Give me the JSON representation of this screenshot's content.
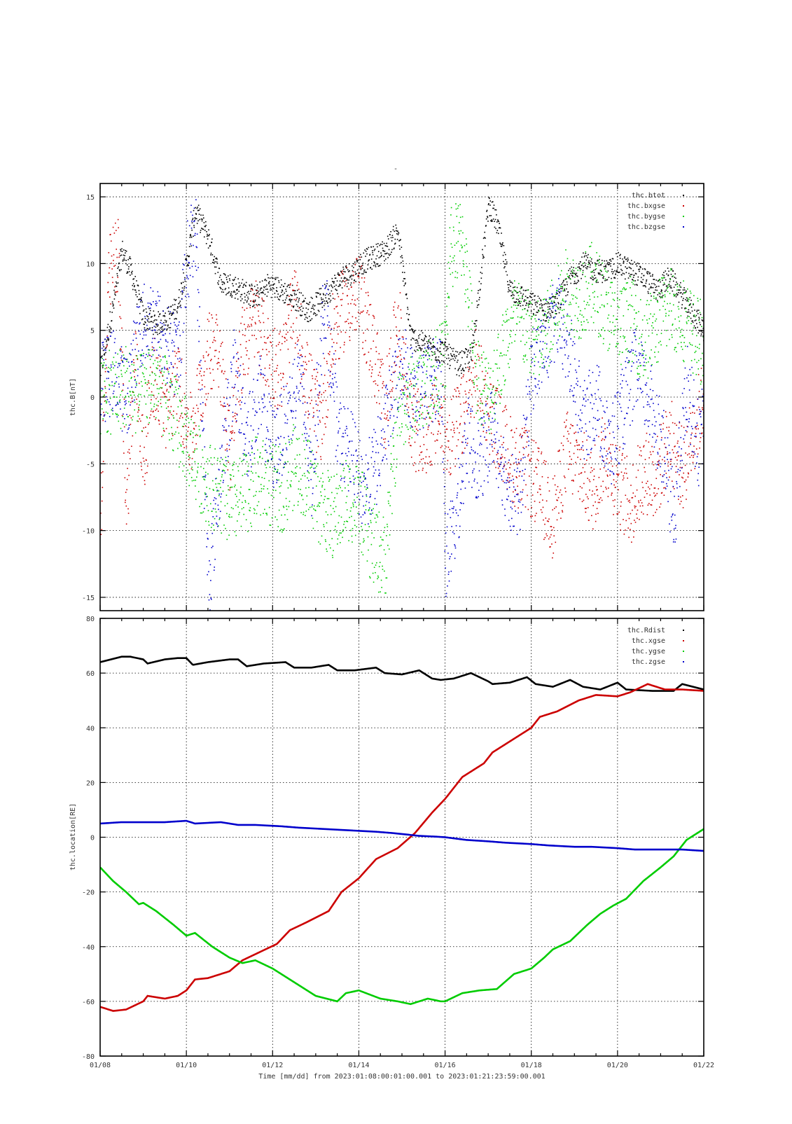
{
  "figure_title": "-",
  "x_axis": {
    "label": "Time [mm/dd]  from 2023:01:08:00:01:00.001  to  2023:01:21:23:59:00.001",
    "ticks": [
      "01/08",
      "01/10",
      "01/12",
      "01/14",
      "01/16",
      "01/18",
      "01/20",
      "01/22"
    ]
  },
  "colors": {
    "black": "#000000",
    "red": "#cc0000",
    "green": "#00cc00",
    "blue": "#0000cc"
  },
  "chart_data": [
    {
      "type": "scatter",
      "ylabel": "thc.B[nT]",
      "x_unit": "days since 2023-01-08 00:00",
      "xlim": [
        0,
        14
      ],
      "ylim": [
        -16,
        16
      ],
      "yticks": [
        -15,
        -10,
        -5,
        0,
        5,
        10,
        15
      ],
      "grid": true,
      "legend_position": "top-right",
      "series": [
        {
          "name": "thc.btot",
          "color": "#000000",
          "x": [
            0,
            0.3,
            0.5,
            0.7,
            1.0,
            1.3,
            1.6,
            1.8,
            2.0,
            2.2,
            2.5,
            2.8,
            3.0,
            3.3,
            3.6,
            3.9,
            4.2,
            4.5,
            4.8,
            5.0,
            5.3,
            5.6,
            5.9,
            6.0,
            6.3,
            6.6,
            6.9,
            7.2,
            7.5,
            7.8,
            8.0,
            8.1,
            8.3,
            8.6,
            9.0,
            9.2,
            9.5,
            9.8,
            10.0,
            10.3,
            10.6,
            10.9,
            11.2,
            11.5,
            11.8,
            12.0,
            12.3,
            12.6,
            12.9,
            13.2,
            13.5,
            13.8,
            14.0
          ],
          "y": [
            2.0,
            7.0,
            11.0,
            9.5,
            6.0,
            5.5,
            6.0,
            7.0,
            10.0,
            14.0,
            12.0,
            8.5,
            8.5,
            8.0,
            7.5,
            8.5,
            8.0,
            7.5,
            6.5,
            7.0,
            8.0,
            9.0,
            9.5,
            10.0,
            10.5,
            11.0,
            12.5,
            4.5,
            4.0,
            3.5,
            3.5,
            3.0,
            2.5,
            3.0,
            14.5,
            13.0,
            8.0,
            7.5,
            7.0,
            6.5,
            7.0,
            9.0,
            10.0,
            9.5,
            9.5,
            10.0,
            9.5,
            9.0,
            8.0,
            9.0,
            7.5,
            6.0,
            5.0
          ]
        },
        {
          "name": "thc.bxgse",
          "color": "#cc0000",
          "x": [
            0,
            0.2,
            0.4,
            0.6,
            0.8,
            1.0,
            1.2,
            1.5,
            1.8,
            2.1,
            2.4,
            2.7,
            3.0,
            3.3,
            3.6,
            3.9,
            4.2,
            4.5,
            4.8,
            5.1,
            5.4,
            5.7,
            6.0,
            6.3,
            6.6,
            6.9,
            7.2,
            7.5,
            7.8,
            8.0,
            8.1,
            8.4,
            8.7,
            9.0,
            9.3,
            9.6,
            9.9,
            10.2,
            10.5,
            10.8,
            11.1,
            11.4,
            11.7,
            12.0,
            12.3,
            12.6,
            12.9,
            13.2,
            13.5,
            13.8,
            14.0
          ],
          "y": [
            -9.0,
            9.0,
            11.0,
            -8.0,
            3.0,
            -5.0,
            2.0,
            -1.0,
            1.0,
            -3.0,
            2.0,
            5.0,
            -4.0,
            4.0,
            6.0,
            3.0,
            2.0,
            7.0,
            1.0,
            -2.0,
            5.0,
            7.0,
            7.5,
            4.0,
            -1.0,
            6.0,
            -2.0,
            -3.0,
            -1.5,
            -2.5,
            -3.0,
            -1.5,
            2.0,
            -1.0,
            -3.0,
            -5.0,
            -5.5,
            -7.0,
            -9.0,
            -4.0,
            -5.0,
            -7.0,
            -4.0,
            -6.5,
            -8.0,
            -5.5,
            -6.0,
            -3.0,
            -5.5,
            -2.0,
            0.0
          ]
        },
        {
          "name": "thc.bygse",
          "color": "#00cc00",
          "x": [
            0,
            0.3,
            0.6,
            0.9,
            1.2,
            1.5,
            1.8,
            2.1,
            2.4,
            2.7,
            3.0,
            3.3,
            3.6,
            3.9,
            4.2,
            4.5,
            4.8,
            5.1,
            5.4,
            5.7,
            6.0,
            6.3,
            6.6,
            6.9,
            7.2,
            7.5,
            7.8,
            8.0,
            8.1,
            8.4,
            8.7,
            9.0,
            9.3,
            9.6,
            9.9,
            10.2,
            10.5,
            10.8,
            11.1,
            11.4,
            11.7,
            12.0,
            12.3,
            12.6,
            12.9,
            13.2,
            13.5,
            13.8,
            14.0
          ],
          "y": [
            0.0,
            0.5,
            1.0,
            0.0,
            1.5,
            0.0,
            -2.0,
            -4.0,
            -6.0,
            -7.0,
            -8.0,
            -7.5,
            -6.0,
            -6.5,
            -7.0,
            -5.0,
            -6.0,
            -8.0,
            -9.0,
            -7.5,
            -8.0,
            -11.0,
            -12.0,
            -1.0,
            0.0,
            1.0,
            2.0,
            3.0,
            11.0,
            12.0,
            2.0,
            0.0,
            3.0,
            6.0,
            5.0,
            4.0,
            6.0,
            8.0,
            7.5,
            8.5,
            7.0,
            5.0,
            6.0,
            4.0,
            5.5,
            7.0,
            6.0,
            4.5,
            4.0
          ]
        },
        {
          "name": "thc.bzgse",
          "color": "#0000cc",
          "x": [
            0,
            0.3,
            0.6,
            0.9,
            1.2,
            1.5,
            1.8,
            2.0,
            2.2,
            2.5,
            2.8,
            3.1,
            3.4,
            3.7,
            4.0,
            4.3,
            4.6,
            4.9,
            5.2,
            5.5,
            5.8,
            6.1,
            6.4,
            6.7,
            7.0,
            7.3,
            7.6,
            7.9,
            8.0,
            8.2,
            8.5,
            8.8,
            9.1,
            9.4,
            9.7,
            10.0,
            10.3,
            10.6,
            10.9,
            11.2,
            11.5,
            11.8,
            12.1,
            12.4,
            12.7,
            13.0,
            13.3,
            13.6,
            13.9,
            14.0
          ],
          "y": [
            1.0,
            2.0,
            0.0,
            5.0,
            6.0,
            4.0,
            3.0,
            10.0,
            13.0,
            -14.0,
            -5.0,
            2.0,
            -3.0,
            0.0,
            -4.0,
            -2.0,
            2.0,
            -6.0,
            8.0,
            -3.0,
            -4.0,
            -7.0,
            -5.0,
            -1.0,
            3.0,
            0.0,
            1.0,
            2.0,
            -12.0,
            -10.0,
            -3.0,
            -5.0,
            -2.0,
            -6.0,
            -8.0,
            2.0,
            4.0,
            6.0,
            3.0,
            -2.0,
            0.0,
            -4.0,
            -1.0,
            2.0,
            0.0,
            -3.0,
            -9.0,
            1.0,
            -4.0,
            0.0
          ]
        }
      ]
    },
    {
      "type": "line",
      "ylabel": "thc.location[RE]",
      "x_unit": "days since 2023-01-08 00:00",
      "xlim": [
        0,
        14
      ],
      "ylim": [
        -80,
        80
      ],
      "yticks": [
        -80,
        -60,
        -40,
        -20,
        0,
        20,
        40,
        60,
        80
      ],
      "grid": true,
      "legend_position": "top-right",
      "series": [
        {
          "name": "thc.Rdist",
          "color": "#000000",
          "x": [
            0,
            0.5,
            0.7,
            1.0,
            1.1,
            1.5,
            1.8,
            2.0,
            2.15,
            2.5,
            3.0,
            3.2,
            3.4,
            3.8,
            4.3,
            4.5,
            4.9,
            5.3,
            5.5,
            5.9,
            6.4,
            6.6,
            7.0,
            7.4,
            7.7,
            7.9,
            8.2,
            8.6,
            9.0,
            9.1,
            9.5,
            9.9,
            10.1,
            10.5,
            10.9,
            11.2,
            11.6,
            12.0,
            12.2,
            12.8,
            13.3,
            13.5,
            14.0
          ],
          "y": [
            64,
            66,
            66,
            65,
            63.5,
            65,
            65.5,
            65.5,
            63,
            64,
            65,
            65,
            62.5,
            63.5,
            64,
            62,
            62,
            63,
            61,
            61,
            62,
            60,
            59.5,
            61,
            58,
            57.5,
            58,
            60,
            57,
            56,
            56.5,
            58.5,
            56,
            55,
            57.5,
            55,
            54,
            56.5,
            54,
            53.5,
            53.5,
            56,
            54
          ]
        },
        {
          "name": "thc.xgse",
          "color": "#cc0000",
          "x": [
            0,
            0.3,
            0.6,
            1.0,
            1.1,
            1.5,
            1.8,
            2.0,
            2.2,
            2.5,
            3.0,
            3.3,
            3.7,
            4.1,
            4.4,
            4.8,
            5.3,
            5.6,
            6.0,
            6.4,
            6.9,
            7.3,
            7.7,
            8.0,
            8.4,
            8.9,
            9.1,
            9.6,
            10.0,
            10.2,
            10.6,
            11.1,
            11.5,
            12.0,
            12.3,
            12.7,
            13.1,
            13.5,
            14.0
          ],
          "y": [
            -62,
            -63.5,
            -63,
            -60,
            -58,
            -59,
            -58,
            -56,
            -52,
            -51.5,
            -49,
            -45,
            -42,
            -39,
            -34,
            -31,
            -27,
            -20,
            -15,
            -8,
            -4,
            1.5,
            9,
            14,
            22,
            27,
            31,
            36,
            40,
            44,
            46,
            50,
            52,
            51.5,
            53,
            56,
            54,
            54,
            53.5
          ]
        },
        {
          "name": "thc.ygse",
          "color": "#00cc00",
          "x": [
            0,
            0.3,
            0.6,
            0.9,
            1.0,
            1.3,
            1.7,
            2.0,
            2.2,
            2.6,
            3.0,
            3.3,
            3.6,
            4.0,
            4.2,
            4.6,
            5.0,
            5.5,
            5.7,
            6.0,
            6.5,
            6.9,
            7.2,
            7.6,
            7.9,
            8.0,
            8.4,
            8.8,
            9.2,
            9.6,
            10.0,
            10.3,
            10.5,
            10.9,
            11.3,
            11.6,
            11.9,
            12.2,
            12.6,
            13.0,
            13.3,
            13.6,
            13.9,
            14.0
          ],
          "y": [
            -11,
            -16,
            -20,
            -24.5,
            -24,
            -27,
            -32,
            -36,
            -35,
            -40,
            -44,
            -46,
            -45,
            -48,
            -50,
            -54,
            -58,
            -60,
            -57,
            -56,
            -59,
            -60,
            -61,
            -59,
            -60,
            -60,
            -57,
            -56,
            -55.5,
            -50,
            -48,
            -44,
            -41,
            -38,
            -32,
            -28,
            -25,
            -22.5,
            -16,
            -11,
            -7,
            -1,
            2,
            3
          ]
        },
        {
          "name": "thc.zgse",
          "color": "#0000cc",
          "x": [
            0,
            0.5,
            1.0,
            1.5,
            2.0,
            2.2,
            2.8,
            3.2,
            3.6,
            4.2,
            4.6,
            5.2,
            5.8,
            6.4,
            6.8,
            7.4,
            7.8,
            8.0,
            8.5,
            9.0,
            9.4,
            10.0,
            10.4,
            11.0,
            11.4,
            12.0,
            12.4,
            13.0,
            13.5,
            14.0
          ],
          "y": [
            5,
            5.5,
            5.5,
            5.5,
            6,
            5,
            5.5,
            4.5,
            4.5,
            4,
            3.5,
            3,
            2.5,
            2,
            1.5,
            0.5,
            0.2,
            0,
            -1,
            -1.5,
            -2,
            -2.5,
            -3,
            -3.5,
            -3.5,
            -4,
            -4.5,
            -4.5,
            -4.5,
            -5
          ]
        }
      ]
    }
  ]
}
